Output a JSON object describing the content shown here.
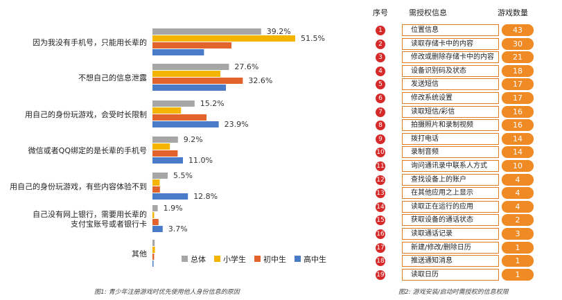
{
  "chart_data": [
    {
      "type": "bar",
      "orientation": "horizontal",
      "title": "",
      "caption": "图1: 青少年注册游戏时优先使用他人身份信息的原因",
      "categories": [
        "因为我没有手机号，只能用长辈的",
        "不想自己的信息泄露",
        "用自己的身份玩游戏，会受时长限制",
        "微信或者QQ绑定的是长辈的手机号",
        "用自己的身份玩游戏，有些内容体验不到",
        "自己没有网上银行，需要用长辈的支付宝账号或者银行卡",
        "其他"
      ],
      "series": [
        {
          "name": "总体",
          "color": "#a6a6a6",
          "values": [
            39.2,
            27.6,
            15.2,
            9.2,
            5.5,
            1.9,
            0.8
          ]
        },
        {
          "name": "小学生",
          "color": "#f5b400",
          "values": [
            51.5,
            24.5,
            10.3,
            6.3,
            2.6,
            0.6,
            0.9
          ]
        },
        {
          "name": "初中生",
          "color": "#e2632b",
          "values": [
            28.5,
            32.6,
            19.5,
            9.1,
            2.7,
            2.2,
            0.6
          ]
        },
        {
          "name": "高中生",
          "color": "#4a7bc8",
          "values": [
            18.6,
            26.5,
            23.9,
            11.0,
            12.8,
            3.7,
            0.3
          ]
        }
      ],
      "data_labels": [
        [
          "39.2%",
          "51.5%",
          "",
          ""
        ],
        [
          "27.6%",
          "",
          "32.6%",
          ""
        ],
        [
          "15.2%",
          "",
          "",
          "23.9%"
        ],
        [
          "9.2%",
          "",
          "",
          "11.0%"
        ],
        [
          "5.5%",
          "",
          "",
          "12.8%"
        ],
        [
          "1.9%",
          "",
          "",
          "3.7%"
        ],
        [
          "",
          "",
          "",
          ""
        ]
      ],
      "legend_position": "bottom-right",
      "grid": false
    },
    {
      "type": "table",
      "caption": "图2: 游戏安装/启动时需授权的信息权限",
      "headers": [
        "序号",
        "需授权信息",
        "游戏数量"
      ],
      "rows": [
        {
          "no": "1",
          "info": "位置信息",
          "count": 43
        },
        {
          "no": "2",
          "info": "读取存储卡中的内容",
          "count": 30
        },
        {
          "no": "3",
          "info": "修改或删除存储卡中的内容",
          "count": 21
        },
        {
          "no": "4",
          "info": "设备识别码及状态",
          "count": 18
        },
        {
          "no": "5",
          "info": "发送短信",
          "count": 17
        },
        {
          "no": "6",
          "info": "修改系统设置",
          "count": 17
        },
        {
          "no": "7",
          "info": "读取短信/彩信",
          "count": 16
        },
        {
          "no": "8",
          "info": "拍摄照片和录制视频",
          "count": 16
        },
        {
          "no": "9",
          "info": "拨打电话",
          "count": 14
        },
        {
          "no": "10",
          "info": "录制音频",
          "count": 14
        },
        {
          "no": "11",
          "info": "询问通讯录中联系人方式",
          "count": 10
        },
        {
          "no": "12",
          "info": "查找设备上的账户",
          "count": 4
        },
        {
          "no": "13",
          "info": "在其他应用之上显示",
          "count": 4
        },
        {
          "no": "14",
          "info": "读取正在运行的应用",
          "count": 4
        },
        {
          "no": "15",
          "info": "获取设备的通话状态",
          "count": 2
        },
        {
          "no": "16",
          "info": "读取通话记录",
          "count": 3
        },
        {
          "no": "17",
          "info": "新建/修改/删除日历",
          "count": 1
        },
        {
          "no": "18",
          "info": "推送通知消息",
          "count": 1
        },
        {
          "no": "19",
          "info": "读取日历",
          "count": 1
        }
      ]
    }
  ]
}
